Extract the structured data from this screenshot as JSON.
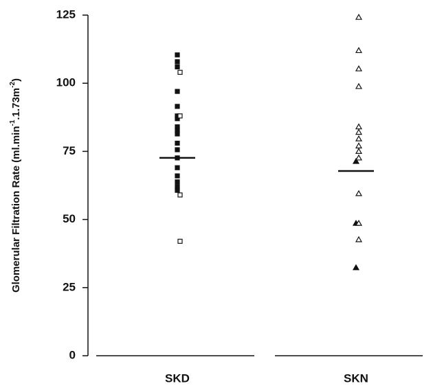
{
  "chart_data": {
    "type": "dot",
    "y_label": [
      "Glomerular Filtration Rate (ml.min",
      "-1",
      ".1.73m",
      "-2",
      ")"
    ],
    "ylim": [
      0,
      125
    ],
    "yticks": [
      0,
      25,
      50,
      75,
      100,
      125
    ],
    "color": "#111111",
    "groups": [
      {
        "label": "SKD",
        "marker": "square",
        "filled_values": [
          110.4,
          107.9,
          106,
          97,
          91.5,
          88,
          87,
          84,
          82.7,
          81.4,
          78,
          75.6,
          72.6,
          69,
          66,
          63.8,
          62,
          60.7
        ],
        "open_values": [
          104,
          88,
          59,
          42
        ],
        "mean": 72.6
      },
      {
        "label": "SKN",
        "marker": "triangle",
        "filled_values": [
          71.3,
          48.6,
          32.3
        ],
        "open_values": [
          124.2,
          112,
          105.3,
          98.8,
          84,
          82,
          79.6,
          77,
          75,
          72.6,
          59.5,
          48.6,
          42.6
        ],
        "mean": 67.8
      }
    ]
  }
}
